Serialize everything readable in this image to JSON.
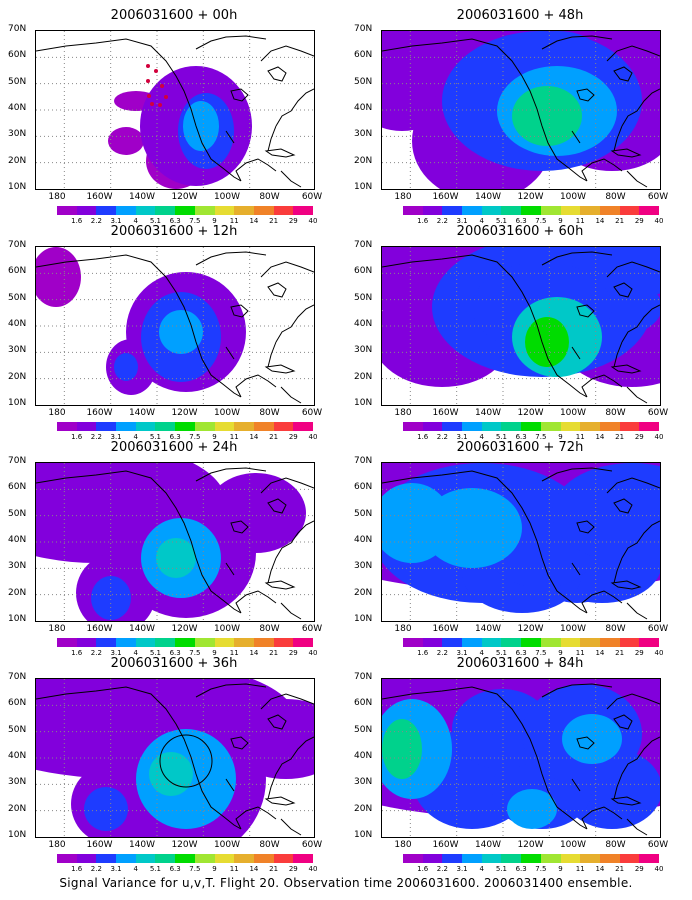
{
  "panels": [
    {
      "title": "2006031600 + 00h",
      "blobs": [
        [
          160,
          95,
          56,
          60,
          1.0
        ],
        [
          140,
          130,
          30,
          28,
          0.8
        ],
        [
          175,
          70,
          30,
          22,
          0.6
        ],
        [
          170,
          100,
          28,
          38,
          2.2
        ],
        [
          165,
          95,
          18,
          25,
          3.2
        ],
        [
          100,
          70,
          22,
          10,
          0.5
        ],
        [
          90,
          110,
          18,
          14,
          0.5
        ]
      ],
      "track": true,
      "circle": false
    },
    {
      "title": "2006031600 + 48h",
      "blobs": [
        [
          120,
          10,
          260,
          40,
          1.6
        ],
        [
          160,
          70,
          100,
          70,
          2.0
        ],
        [
          175,
          80,
          60,
          45,
          3.2
        ],
        [
          165,
          85,
          35,
          30,
          5.2
        ],
        [
          100,
          110,
          70,
          60,
          1.6
        ],
        [
          20,
          40,
          60,
          60,
          1.4
        ],
        [
          250,
          60,
          90,
          50,
          1.6
        ],
        [
          230,
          100,
          60,
          40,
          1.3
        ],
        [
          175,
          20,
          40,
          20,
          2.6
        ]
      ],
      "track": false,
      "circle": false
    },
    {
      "title": "2006031600 + 12h",
      "blobs": [
        [
          150,
          85,
          60,
          60,
          1.2
        ],
        [
          145,
          90,
          40,
          45,
          2.2
        ],
        [
          145,
          85,
          22,
          22,
          3.6
        ],
        [
          95,
          120,
          25,
          28,
          1.4
        ],
        [
          90,
          120,
          12,
          14,
          2.6
        ],
        [
          20,
          30,
          25,
          30,
          0.8
        ]
      ],
      "track": false,
      "circle": false
    },
    {
      "title": "2006031600 + 60h",
      "blobs": [
        [
          130,
          20,
          260,
          50,
          1.5
        ],
        [
          160,
          60,
          110,
          70,
          2.0
        ],
        [
          160,
          60,
          70,
          45,
          2.6
        ],
        [
          175,
          90,
          45,
          40,
          4.8
        ],
        [
          165,
          95,
          22,
          25,
          6.0
        ],
        [
          60,
          90,
          70,
          50,
          1.6
        ],
        [
          250,
          80,
          80,
          60,
          1.4
        ],
        [
          250,
          20,
          60,
          30,
          2.4
        ],
        [
          230,
          60,
          50,
          30,
          2.0
        ]
      ],
      "track": false,
      "circle": false
    },
    {
      "title": "2006031600 + 24h",
      "blobs": [
        [
          60,
          40,
          130,
          60,
          1.3
        ],
        [
          150,
          90,
          70,
          65,
          1.6
        ],
        [
          145,
          95,
          40,
          40,
          3.0
        ],
        [
          140,
          95,
          20,
          20,
          4.4
        ],
        [
          80,
          130,
          40,
          40,
          1.4
        ],
        [
          75,
          135,
          20,
          22,
          2.8
        ],
        [
          220,
          50,
          50,
          40,
          1.0
        ]
      ],
      "track": false,
      "circle": false
    },
    {
      "title": "2006031600 + 72h",
      "blobs": [
        [
          140,
          40,
          270,
          90,
          1.8
        ],
        [
          100,
          70,
          110,
          70,
          2.2
        ],
        [
          90,
          65,
          50,
          40,
          3.2
        ],
        [
          30,
          60,
          40,
          40,
          3.0
        ],
        [
          160,
          75,
          60,
          50,
          2.6
        ],
        [
          140,
          110,
          60,
          40,
          2.4
        ],
        [
          250,
          50,
          80,
          50,
          2.6
        ],
        [
          220,
          100,
          60,
          40,
          2.2
        ],
        [
          195,
          110,
          40,
          30,
          2.0
        ]
      ],
      "track": false,
      "circle": false
    },
    {
      "title": "2006031600 + 36h",
      "blobs": [
        [
          90,
          40,
          170,
          60,
          1.3
        ],
        [
          150,
          100,
          80,
          80,
          1.8
        ],
        [
          150,
          100,
          50,
          50,
          3.0
        ],
        [
          135,
          95,
          22,
          22,
          4.8
        ],
        [
          75,
          125,
          40,
          40,
          1.4
        ],
        [
          70,
          130,
          22,
          22,
          2.8
        ],
        [
          250,
          60,
          60,
          40,
          1.0
        ]
      ],
      "track": false,
      "circle": true
    },
    {
      "title": "2006031600 + 84h",
      "blobs": [
        [
          140,
          40,
          280,
          100,
          1.9
        ],
        [
          30,
          70,
          40,
          50,
          3.6
        ],
        [
          20,
          70,
          20,
          30,
          5.6
        ],
        [
          120,
          50,
          50,
          40,
          2.8
        ],
        [
          200,
          55,
          60,
          50,
          2.8
        ],
        [
          210,
          60,
          30,
          25,
          3.6
        ],
        [
          160,
          110,
          50,
          40,
          2.6
        ],
        [
          150,
          130,
          25,
          20,
          3.4
        ],
        [
          230,
          110,
          50,
          40,
          2.0
        ],
        [
          90,
          100,
          60,
          50,
          2.2
        ]
      ],
      "track": false,
      "circle": false
    }
  ],
  "y_labels": [
    "70N",
    "60N",
    "50N",
    "40N",
    "30N",
    "20N",
    "10N"
  ],
  "x_labels": [
    "180",
    "160W",
    "140W",
    "120W",
    "100W",
    "80W",
    "60W"
  ],
  "colorbar_labels": [
    "1.6",
    "2.2",
    "3.1",
    "4",
    "5.1",
    "6.3",
    "7.5",
    "9",
    "11",
    "14",
    "21",
    "29",
    "40"
  ],
  "colorbar_colors": [
    "#a000c8",
    "#8200dc",
    "#1e3cff",
    "#00a0ff",
    "#00c8c8",
    "#00d28c",
    "#00dc00",
    "#a0e632",
    "#e6dc32",
    "#e6af2d",
    "#f08228",
    "#fa3c3c",
    "#f00082"
  ],
  "caption": "Signal Variance for u,v,T. Flight 20. Observation time 2006031600. 2006031400 ensemble."
}
